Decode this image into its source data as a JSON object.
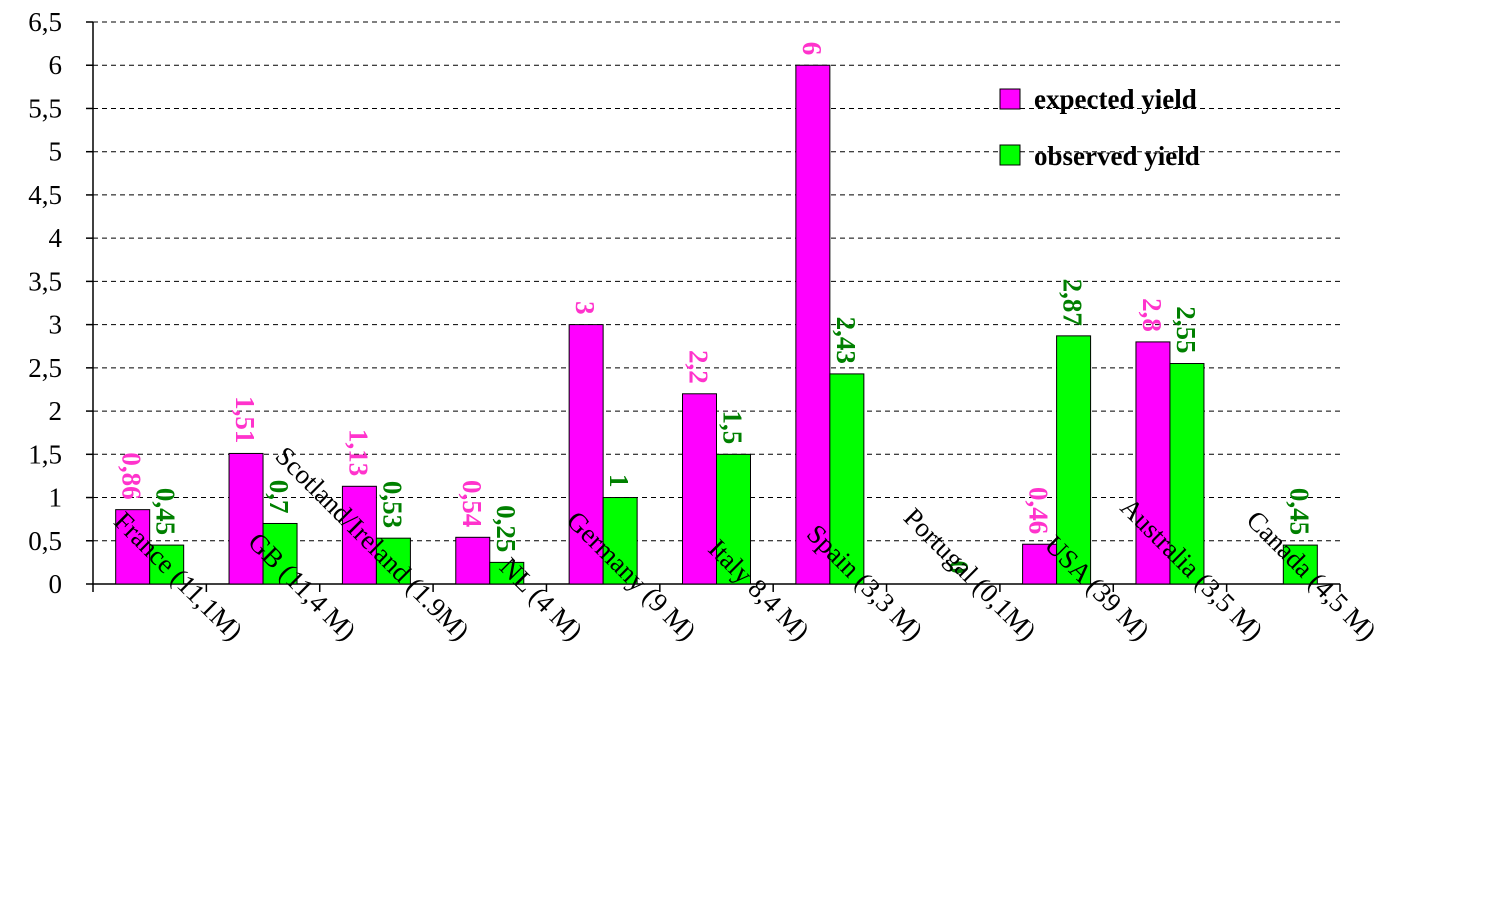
{
  "chart_data": {
    "type": "bar",
    "categories": [
      "France (11,1M)",
      "GB (11,4 M)",
      "Scotland/Ireland (1.9M)",
      "NL (4 M)",
      "Germany (9 M)",
      "Italy 8,4 M)",
      "Spain (3,3 M)",
      "Portugal (0,1M)",
      "USA (39 M)",
      "Australia (3,5 M)",
      "Canada (4,5 M)"
    ],
    "series": [
      {
        "name": "expected yield",
        "color": "#ff00ff",
        "label_color": "#ff33cc",
        "values": [
          0.86,
          1.51,
          1.13,
          0.54,
          3,
          2.2,
          6,
          null,
          0.46,
          2.8,
          null
        ],
        "labels": [
          "0,86",
          "1,51",
          "1,13",
          "0,54",
          "3",
          "2,2",
          "6",
          "",
          "0,46",
          "2,8",
          ""
        ]
      },
      {
        "name": "observed yield",
        "color": "#00ff00",
        "label_color": "#008000",
        "values": [
          0.45,
          0.7,
          0.53,
          0.25,
          1,
          1.5,
          2.43,
          0,
          2.87,
          2.55,
          0.45
        ],
        "labels": [
          "0,45",
          "0,7",
          "0,53",
          "0,25",
          "1",
          "1,5",
          "2,43",
          "0",
          "2,87",
          "2,55",
          "0,45"
        ]
      }
    ],
    "yticks": [
      "0",
      "0,5",
      "1",
      "1,5",
      "2",
      "2,5",
      "3",
      "3,5",
      "4",
      "4,5",
      "5",
      "5,5",
      "6",
      "6,5"
    ],
    "ylim": [
      0,
      6.5
    ],
    "grid": true,
    "legend_position": "top-right",
    "title": "",
    "xlabel": "",
    "ylabel": ""
  }
}
